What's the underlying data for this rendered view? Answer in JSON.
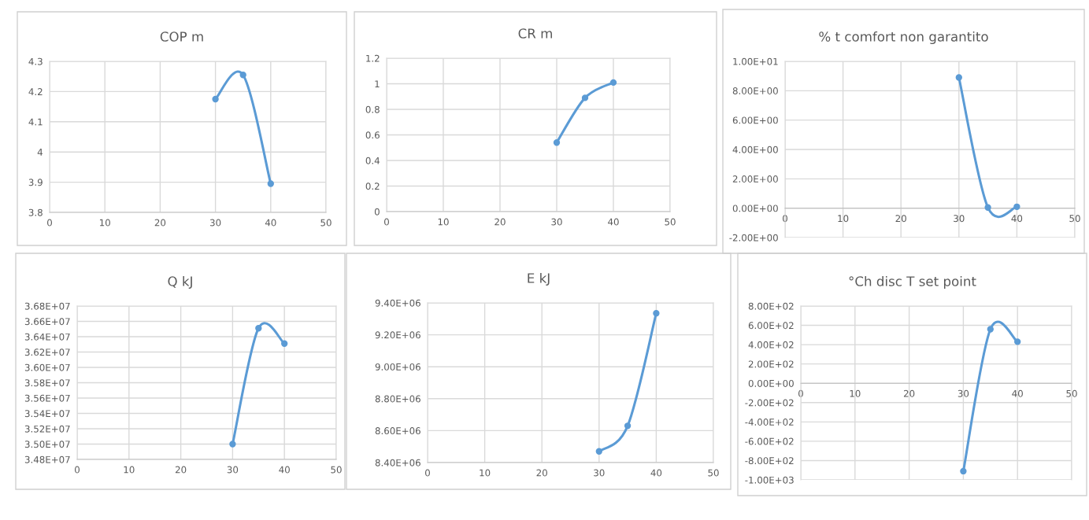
{
  "chart_data": [
    {
      "type": "line",
      "title": "COP m",
      "x": [
        30,
        35,
        40
      ],
      "series": [
        {
          "color": "#5b9bd5",
          "values": [
            4.175,
            4.255,
            3.895
          ]
        }
      ],
      "xlim": [
        0,
        50
      ],
      "xticks": [
        0,
        10,
        20,
        30,
        40,
        50
      ],
      "ylim": [
        3.8,
        4.3
      ],
      "yticks": [
        3.8,
        3.9,
        4,
        4.1,
        4.2,
        4.3
      ],
      "grid": true,
      "marker": "circle",
      "line_style": "solid"
    },
    {
      "type": "line",
      "title": "CR m",
      "x": [
        30,
        35,
        40
      ],
      "series": [
        {
          "color": "#5b9bd5",
          "values": [
            0.54,
            0.89,
            1.01
          ]
        }
      ],
      "xlim": [
        0,
        50
      ],
      "xticks": [
        0,
        10,
        20,
        30,
        40,
        50
      ],
      "ylim": [
        0,
        1.2
      ],
      "yticks": [
        0,
        0.2,
        0.4,
        0.6,
        0.8,
        1,
        1.2
      ],
      "grid": true,
      "marker": "circle",
      "line_style": "solid"
    },
    {
      "type": "line",
      "title": "% t comfort non garantito",
      "x": [
        30,
        35,
        40
      ],
      "series": [
        {
          "color": "#5b9bd5",
          "values": [
            8.9,
            0.05,
            0.1
          ]
        }
      ],
      "xlim": [
        0,
        50
      ],
      "xticks": [
        0,
        10,
        20,
        30,
        40,
        50
      ],
      "ylim": [
        -2,
        10
      ],
      "yticks": [
        {
          "value": -2,
          "label": "-2.00E+00"
        },
        {
          "value": 0,
          "label": "0.00E+00"
        },
        {
          "value": 2,
          "label": "2.00E+00"
        },
        {
          "value": 4,
          "label": "4.00E+00"
        },
        {
          "value": 6,
          "label": "6.00E+00"
        },
        {
          "value": 8,
          "label": "8.00E+00"
        },
        {
          "value": 10,
          "label": "1.00E+01"
        }
      ],
      "grid": true,
      "marker": "circle",
      "line_style": "solid"
    },
    {
      "type": "line",
      "title": "Q kJ",
      "x": [
        30,
        35,
        40
      ],
      "series": [
        {
          "color": "#5b9bd5",
          "values": [
            35000000,
            36510000,
            36310000
          ]
        }
      ],
      "xlim": [
        0,
        50
      ],
      "xticks": [
        0,
        10,
        20,
        30,
        40,
        50
      ],
      "ylim": [
        34800000,
        36800000
      ],
      "yticks": [
        {
          "value": 34800000,
          "label": "3.48E+07"
        },
        {
          "value": 35000000,
          "label": "3.50E+07"
        },
        {
          "value": 35200000,
          "label": "3.52E+07"
        },
        {
          "value": 35400000,
          "label": "3.54E+07"
        },
        {
          "value": 35600000,
          "label": "3.56E+07"
        },
        {
          "value": 35800000,
          "label": "3.58E+07"
        },
        {
          "value": 36000000,
          "label": "3.60E+07"
        },
        {
          "value": 36200000,
          "label": "3.62E+07"
        },
        {
          "value": 36400000,
          "label": "3.64E+07"
        },
        {
          "value": 36600000,
          "label": "3.66E+07"
        },
        {
          "value": 36800000,
          "label": "3.68E+07"
        }
      ],
      "grid": true,
      "marker": "circle",
      "line_style": "solid"
    },
    {
      "type": "line",
      "title": "E kJ",
      "x": [
        30,
        35,
        40
      ],
      "series": [
        {
          "color": "#5b9bd5",
          "values": [
            8470000,
            8630000,
            9335000
          ]
        }
      ],
      "xlim": [
        0,
        50
      ],
      "xticks": [
        0,
        10,
        20,
        30,
        40,
        50
      ],
      "ylim": [
        8400000,
        9400000
      ],
      "yticks": [
        {
          "value": 8400000,
          "label": "8.40E+06"
        },
        {
          "value": 8600000,
          "label": "8.60E+06"
        },
        {
          "value": 8800000,
          "label": "8.80E+06"
        },
        {
          "value": 9000000,
          "label": "9.00E+06"
        },
        {
          "value": 9200000,
          "label": "9.20E+06"
        },
        {
          "value": 9400000,
          "label": "9.40E+06"
        }
      ],
      "grid": true,
      "marker": "circle",
      "line_style": "solid"
    },
    {
      "type": "line",
      "title": "°Ch disc T set point",
      "x": [
        30,
        35,
        40
      ],
      "series": [
        {
          "color": "#5b9bd5",
          "values": [
            -910,
            560,
            430
          ]
        }
      ],
      "xlim": [
        0,
        50
      ],
      "xticks": [
        0,
        10,
        20,
        30,
        40,
        50
      ],
      "ylim": [
        -1000,
        800
      ],
      "yticks": [
        {
          "value": -1000,
          "label": "-1.00E+03"
        },
        {
          "value": -800,
          "label": "-8.00E+02"
        },
        {
          "value": -600,
          "label": "-6.00E+02"
        },
        {
          "value": -400,
          "label": "-4.00E+02"
        },
        {
          "value": -200,
          "label": "-2.00E+02"
        },
        {
          "value": 0,
          "label": "0.00E+00"
        },
        {
          "value": 200,
          "label": "2.00E+02"
        },
        {
          "value": 400,
          "label": "4.00E+02"
        },
        {
          "value": 600,
          "label": "6.00E+02"
        },
        {
          "value": 800,
          "label": "8.00E+02"
        }
      ],
      "grid": true,
      "marker": "circle",
      "line_style": "solid"
    }
  ]
}
